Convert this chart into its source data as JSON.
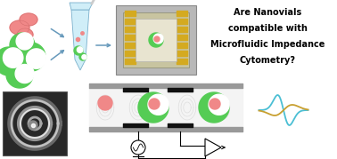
{
  "title_lines": [
    "Are Nanovials",
    "compatible with",
    "Microfluidic Impedance",
    "Cytometry?"
  ],
  "title_fontsize": 7.0,
  "title_fontweight": "bold",
  "bg_color": "#ffffff",
  "cyan_color": "#4bbfd4",
  "gold_color": "#c8a030",
  "green_color": "#55cc55",
  "pink_color": "#f08888",
  "arrow_color": "#6699bb"
}
